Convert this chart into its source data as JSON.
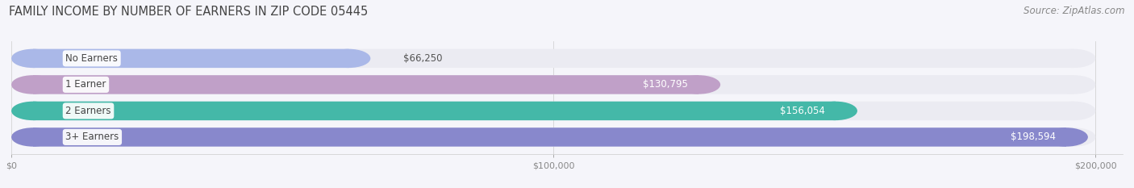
{
  "title": "FAMILY INCOME BY NUMBER OF EARNERS IN ZIP CODE 05445",
  "source": "Source: ZipAtlas.com",
  "categories": [
    "No Earners",
    "1 Earner",
    "2 Earners",
    "3+ Earners"
  ],
  "values": [
    66250,
    130795,
    156054,
    198594
  ],
  "value_labels": [
    "$66,250",
    "$130,795",
    "$156,054",
    "$198,594"
  ],
  "bar_colors": [
    "#aab8e8",
    "#c0a0c8",
    "#44b8a8",
    "#8888cc"
  ],
  "track_color": "#ebebf2",
  "xlim": [
    0,
    205000
  ],
  "max_track": 200000,
  "xticks": [
    0,
    100000,
    200000
  ],
  "xtick_labels": [
    "$0",
    "$100,000",
    "$200,000"
  ],
  "title_fontsize": 10.5,
  "source_fontsize": 8.5,
  "bar_height": 0.72,
  "label_fontsize": 8.5,
  "value_fontsize": 8.5,
  "background_color": "#f5f5fa",
  "bar_label_color_inside": "#ffffff",
  "bar_label_color_outside": "#555555",
  "outside_threshold": 80000
}
